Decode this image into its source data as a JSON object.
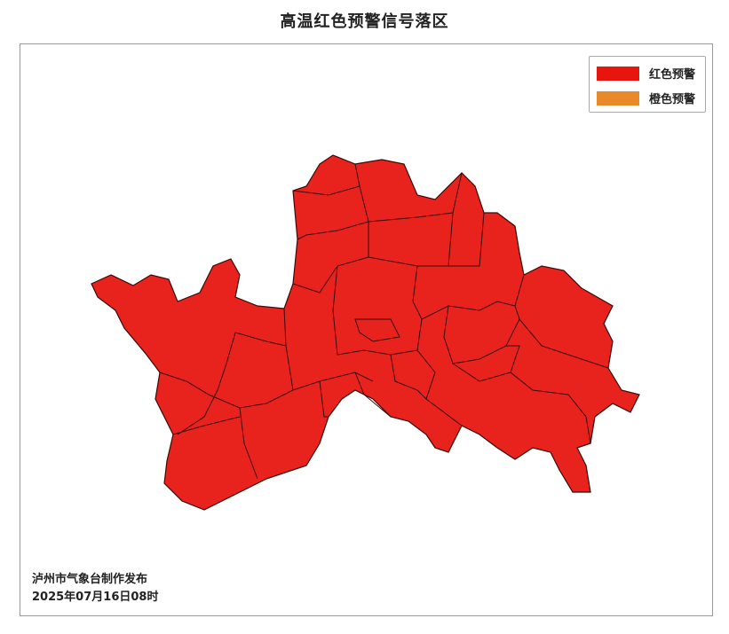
{
  "title": "高温红色预警信号落区",
  "legend": {
    "items": [
      {
        "label": "红色预警",
        "color": "#e8150f"
      },
      {
        "label": "橙色预警",
        "color": "#e8892a"
      }
    ]
  },
  "map": {
    "fill_color": "#e8221c",
    "border_color": "#3a0a08",
    "warning_level": "红色预警"
  },
  "footer": {
    "issuer": "泸州市气象台制作发布",
    "time": "2025年07月16日08时"
  }
}
